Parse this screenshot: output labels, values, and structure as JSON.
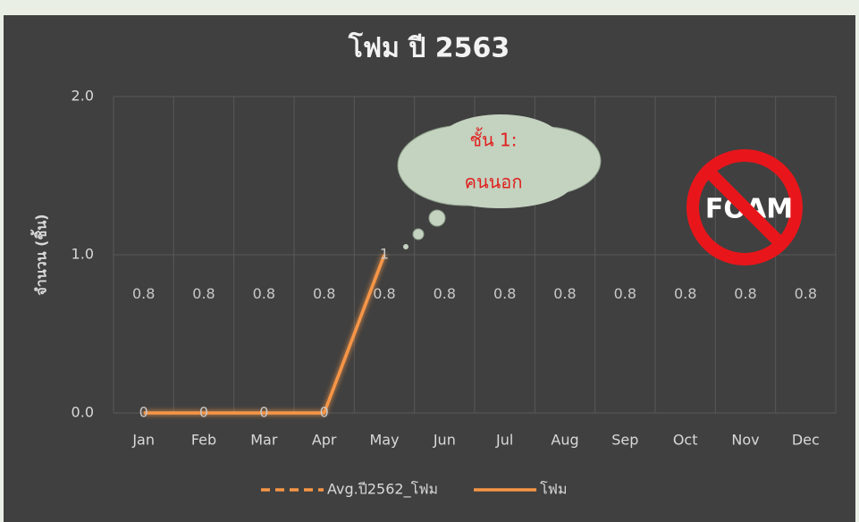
{
  "chart_data": {
    "type": "line",
    "title": "โฟม ปี 2563",
    "y_label": "จำนวน (ชิ้น)",
    "categories": [
      "Jan",
      "Feb",
      "Mar",
      "Apr",
      "May",
      "Jun",
      "Jul",
      "Aug",
      "Sep",
      "Oct",
      "Nov",
      "Dec"
    ],
    "series": [
      {
        "name": "Avg.ปี2562_โฟม",
        "color": "#f79646",
        "dashed": true,
        "values": [
          0.75,
          0.75,
          0.75,
          0.75,
          0.75,
          0.75,
          0.75,
          0.75,
          0.75,
          0.75,
          0.75,
          0.75
        ],
        "value_labels": [
          "0.8",
          "0.8",
          "0.8",
          "0.8",
          "0.8",
          "0.8",
          "0.8",
          "0.8",
          "0.8",
          "0.8",
          "0.8",
          "0.8"
        ]
      },
      {
        "name": "โฟม",
        "color": "#f79646",
        "dashed": false,
        "values": [
          0,
          0,
          0,
          0,
          1,
          null,
          null,
          null,
          null,
          null,
          null,
          null
        ]
      }
    ],
    "ylim": [
      0,
      2
    ],
    "yticks": [
      {
        "value": 0,
        "label": "0.0"
      },
      {
        "value": 1,
        "label": "1.0"
      },
      {
        "value": 2,
        "label": "2.0"
      }
    ],
    "grid": true,
    "legend": "bottom",
    "annotations": [
      "ชั้น 1:",
      "คนนอก"
    ],
    "icon_label": "FOAM"
  }
}
